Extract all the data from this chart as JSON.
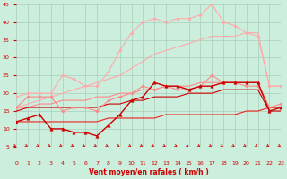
{
  "x": [
    0,
    1,
    2,
    3,
    4,
    5,
    6,
    7,
    8,
    9,
    10,
    11,
    12,
    13,
    14,
    15,
    16,
    17,
    18,
    19,
    20,
    21,
    22,
    23
  ],
  "series": [
    {
      "color": "#ffaaaa",
      "lw": 0.8,
      "marker": "D",
      "ms": 1.8,
      "values": [
        19,
        20,
        20,
        20,
        25,
        24,
        22,
        22,
        26,
        32,
        37,
        40,
        41,
        40,
        41,
        41,
        42,
        45,
        40,
        39,
        37,
        36,
        22,
        22
      ]
    },
    {
      "color": "#ffaaaa",
      "lw": 0.8,
      "marker": null,
      "ms": 0,
      "values": [
        16,
        17,
        18,
        19,
        20,
        21,
        22,
        23,
        24,
        25,
        27,
        29,
        31,
        32,
        33,
        34,
        35,
        36,
        36,
        36,
        37,
        37,
        22,
        22
      ]
    },
    {
      "color": "#ff8888",
      "lw": 0.8,
      "marker": "D",
      "ms": 1.8,
      "values": [
        16,
        19,
        19,
        19,
        15,
        16,
        16,
        15,
        18,
        19,
        20,
        22,
        21,
        22,
        21,
        21,
        22,
        25,
        23,
        23,
        22,
        22,
        16,
        17
      ]
    },
    {
      "color": "#ff8888",
      "lw": 0.8,
      "marker": null,
      "ms": 0,
      "values": [
        16,
        16,
        17,
        17,
        18,
        18,
        18,
        19,
        19,
        20,
        20,
        21,
        21,
        22,
        22,
        22,
        23,
        23,
        23,
        23,
        23,
        23,
        16,
        16
      ]
    },
    {
      "color": "#cc0000",
      "lw": 1.0,
      "marker": "^",
      "ms": 2.5,
      "values": [
        12,
        13,
        14,
        10,
        10,
        9,
        9,
        8,
        11,
        14,
        18,
        19,
        23,
        22,
        22,
        21,
        22,
        22,
        23,
        23,
        23,
        23,
        15,
        16
      ]
    },
    {
      "color": "#cc0000",
      "lw": 0.8,
      "marker": null,
      "ms": 0,
      "values": [
        15,
        16,
        16,
        16,
        16,
        16,
        16,
        16,
        17,
        17,
        18,
        18,
        19,
        19,
        19,
        20,
        20,
        20,
        21,
        21,
        21,
        21,
        15,
        15
      ]
    },
    {
      "color": "#ee2222",
      "lw": 0.8,
      "marker": null,
      "ms": 0,
      "values": [
        12,
        12,
        12,
        12,
        12,
        12,
        12,
        12,
        13,
        13,
        13,
        13,
        13,
        14,
        14,
        14,
        14,
        14,
        14,
        14,
        15,
        15,
        16,
        16
      ]
    }
  ],
  "xlabel": "Vent moyen/en rafales ( km/h )",
  "xlim": [
    0,
    23
  ],
  "ylim": [
    5,
    45
  ],
  "yticks": [
    5,
    10,
    15,
    20,
    25,
    30,
    35,
    40,
    45
  ],
  "xticks": [
    0,
    1,
    2,
    3,
    4,
    5,
    6,
    7,
    8,
    9,
    10,
    11,
    12,
    13,
    14,
    15,
    16,
    17,
    18,
    19,
    20,
    21,
    22,
    23
  ],
  "bg_color": "#cceedd",
  "grid_color": "#aaccbb",
  "tick_color": "#cc0000",
  "label_color": "#cc0000"
}
